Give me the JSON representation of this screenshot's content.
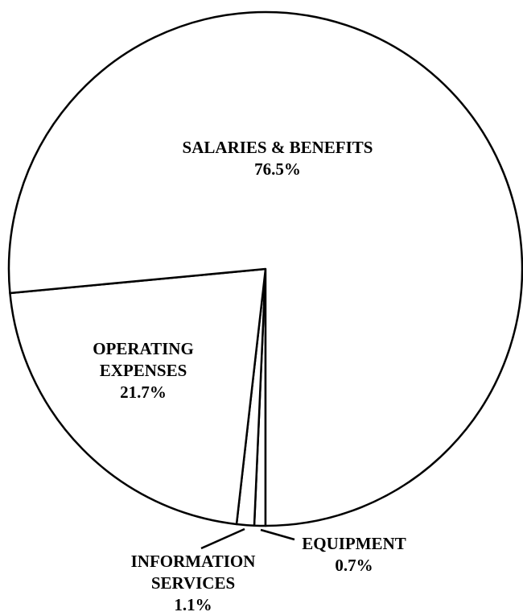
{
  "chart_data": {
    "type": "pie",
    "categories": [
      "EQUIPMENT",
      "INFORMATION SERVICES",
      "OPERATING EXPENSES",
      "SALARIES & BENEFITS"
    ],
    "values": [
      0.7,
      1.1,
      21.7,
      76.5
    ],
    "value_labels": [
      "0.7%",
      "1.1%",
      "21.7%",
      "76.5%"
    ],
    "color": "#ffffff"
  }
}
